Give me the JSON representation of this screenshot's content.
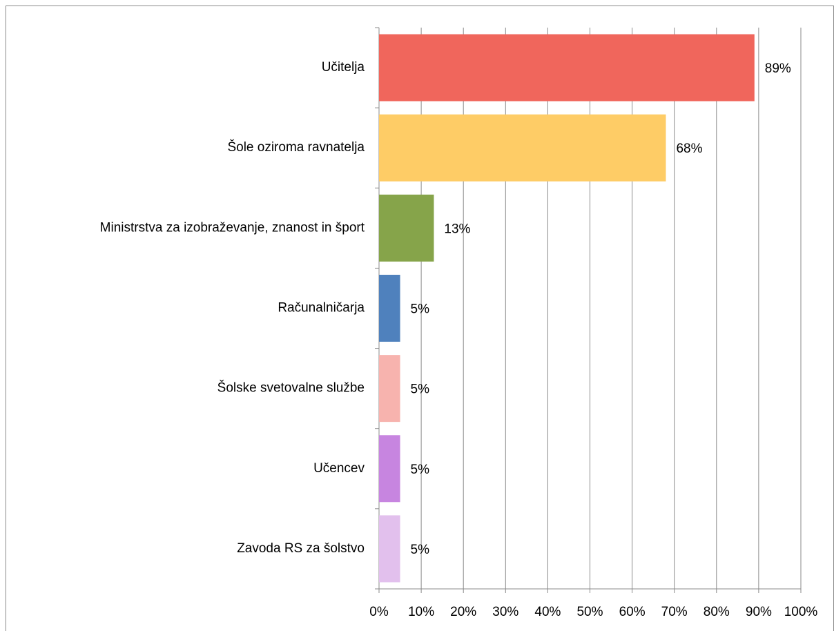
{
  "chart_data": {
    "type": "bar",
    "orientation": "horizontal",
    "categories": [
      "Učitelja",
      "Šole oziroma ravnatelja",
      "Ministrstva za izobraževanje, znanost in šport",
      "Računalničarja",
      "Šolske svetovalne službe",
      "Učencev",
      "Zavoda RS za šolstvo"
    ],
    "values": [
      89,
      68,
      13,
      5,
      5,
      5,
      5
    ],
    "value_labels": [
      "89%",
      "68%",
      "13%",
      "5%",
      "5%",
      "5%",
      "5%"
    ],
    "colors": [
      "#f0665c",
      "#fecc66",
      "#86a44a",
      "#4f81bd",
      "#f7b3ae",
      "#c785e0",
      "#e2c0ed"
    ],
    "xlim": [
      0,
      100
    ],
    "xticks": [
      {
        "value": 0,
        "label": "0%"
      },
      {
        "value": 10,
        "label": "10%"
      },
      {
        "value": 20,
        "label": "20%"
      },
      {
        "value": 30,
        "label": "30%"
      },
      {
        "value": 40,
        "label": "40%"
      },
      {
        "value": 50,
        "label": "50%"
      },
      {
        "value": 60,
        "label": "60%"
      },
      {
        "value": 70,
        "label": "70%"
      },
      {
        "value": 80,
        "label": "80%"
      },
      {
        "value": 90,
        "label": "90%"
      },
      {
        "value": 100,
        "label": "100%"
      }
    ],
    "grid": true
  }
}
